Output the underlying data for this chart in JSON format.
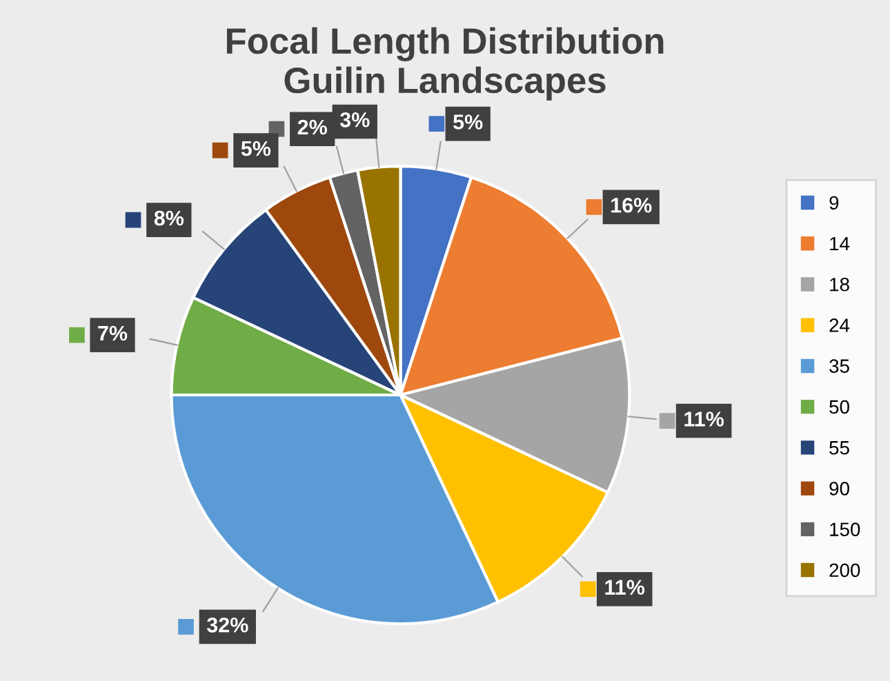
{
  "chart_data": {
    "type": "pie",
    "title": "Focal Length Distribution\nGuilin Landscapes",
    "categories": [
      "9",
      "14",
      "18",
      "24",
      "35",
      "50",
      "55",
      "90",
      "150",
      "200"
    ],
    "values": [
      5,
      16,
      11,
      11,
      32,
      7,
      8,
      5,
      2,
      3
    ],
    "colors": [
      "#4472c4",
      "#ed7d31",
      "#a5a5a5",
      "#ffc000",
      "#5b9bd5",
      "#70ad47",
      "#264478",
      "#9e480e",
      "#636363",
      "#997300"
    ],
    "value_labels": [
      "5%",
      "16%",
      "11%",
      "11%",
      "32%",
      "7%",
      "8%",
      "5%",
      "2%",
      "3%"
    ],
    "legend": "right"
  }
}
